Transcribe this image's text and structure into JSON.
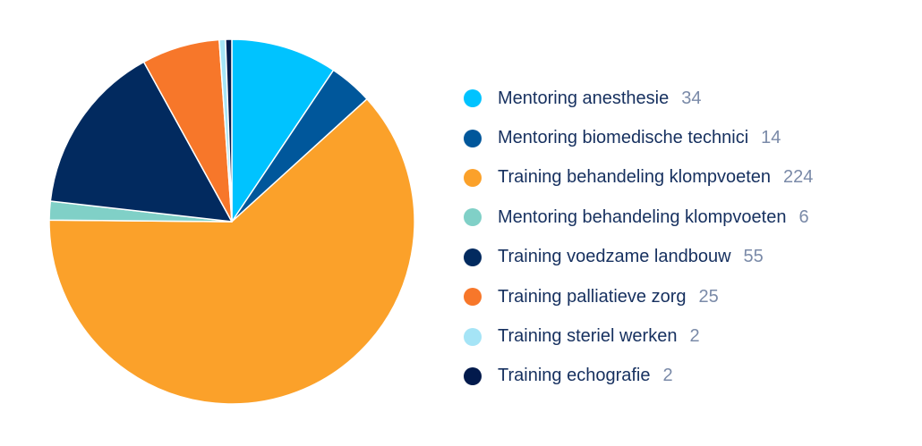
{
  "chart_data": {
    "type": "pie",
    "legend_position": "right",
    "series": [
      {
        "name": "Mentoring anesthesie",
        "value": 34,
        "color": "#00c3ff"
      },
      {
        "name": "Mentoring biomedische technici",
        "value": 14,
        "color": "#00579b"
      },
      {
        "name": "Training behandeling klompvoeten",
        "value": 224,
        "color": "#fba12a"
      },
      {
        "name": "Mentoring behandeling klompvoeten",
        "value": 6,
        "color": "#80d0c7"
      },
      {
        "name": "Training voedzame landbouw",
        "value": 55,
        "color": "#022a5f"
      },
      {
        "name": "Training palliatieve zorg",
        "value": 25,
        "color": "#f7772a"
      },
      {
        "name": "Training steriel werken",
        "value": 2,
        "color": "#a5e4f6"
      },
      {
        "name": "Training echografie",
        "value": 2,
        "color": "#021a4c"
      }
    ]
  }
}
